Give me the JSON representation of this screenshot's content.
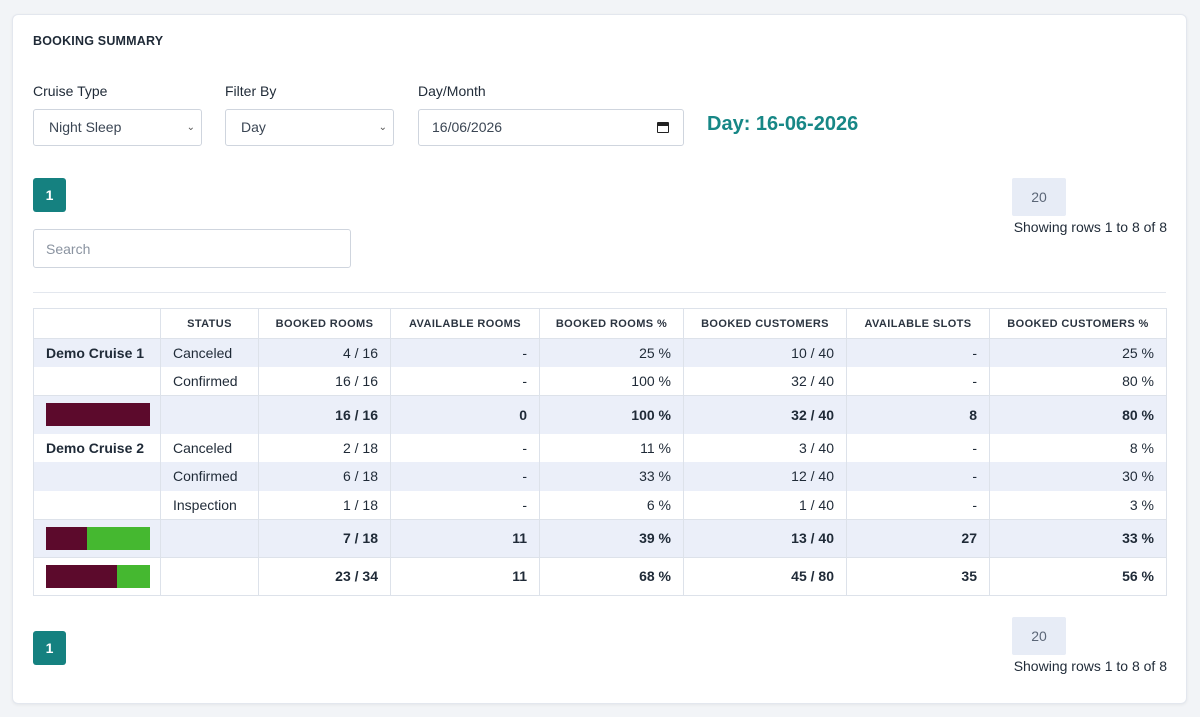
{
  "card": {
    "title": "BOOKING SUMMARY"
  },
  "filters": {
    "cruise_type": {
      "label": "Cruise Type",
      "value": "Night Sleep"
    },
    "filter_by": {
      "label": "Filter By",
      "value": "Day"
    },
    "day_month": {
      "label": "Day/Month",
      "value": "16/06/2026"
    },
    "day_label": "Day: 16-06-2026"
  },
  "pagination": {
    "current_page": "1",
    "page_size": "20",
    "showing": "Showing rows 1 to 8 of 8"
  },
  "search": {
    "placeholder": "Search",
    "icon": "none"
  },
  "colors": {
    "accent": "#158180",
    "booked": "#5c0a2c",
    "available": "#45b830",
    "alt_row": "#ebeff9"
  },
  "table": {
    "headers": [
      "",
      "STATUS",
      "BOOKED ROOMS",
      "AVAILABLE ROOMS",
      "BOOKED ROOMS %",
      "BOOKED CUSTOMERS",
      "AVAILABLE SLOTS",
      "BOOKED CUSTOMERS %"
    ],
    "rows": [
      {
        "cruise": "Demo Cruise 1",
        "status": "Canceled",
        "booked_rooms": "4 / 16",
        "available_rooms": "-",
        "booked_rooms_pct": "25 %",
        "booked_customers": "10 / 40",
        "available_slots": "-",
        "booked_customers_pct": "25 %"
      },
      {
        "cruise": "",
        "status": "Confirmed",
        "booked_rooms": "16 / 16",
        "available_rooms": "-",
        "booked_rooms_pct": "100 %",
        "booked_customers": "32 / 40",
        "available_slots": "-",
        "booked_customers_pct": "80 %"
      },
      {
        "cruise": "",
        "status": "",
        "booked_rooms": "16 / 16",
        "available_rooms": "0",
        "booked_rooms_pct": "100 %",
        "booked_customers": "32 / 40",
        "available_slots": "8",
        "booked_customers_pct": "80 %",
        "bar_booked_fraction": 1.0
      },
      {
        "cruise": "Demo Cruise 2",
        "status": "Canceled",
        "booked_rooms": "2 / 18",
        "available_rooms": "-",
        "booked_rooms_pct": "11 %",
        "booked_customers": "3 / 40",
        "available_slots": "-",
        "booked_customers_pct": "8 %"
      },
      {
        "cruise": "",
        "status": "Confirmed",
        "booked_rooms": "6 / 18",
        "available_rooms": "-",
        "booked_rooms_pct": "33 %",
        "booked_customers": "12 / 40",
        "available_slots": "-",
        "booked_customers_pct": "30 %"
      },
      {
        "cruise": "",
        "status": "Inspection",
        "booked_rooms": "1 / 18",
        "available_rooms": "-",
        "booked_rooms_pct": "6 %",
        "booked_customers": "1 / 40",
        "available_slots": "-",
        "booked_customers_pct": "3 %"
      },
      {
        "cruise": "",
        "status": "",
        "booked_rooms": "7 / 18",
        "available_rooms": "11",
        "booked_rooms_pct": "39 %",
        "booked_customers": "13 / 40",
        "available_slots": "27",
        "booked_customers_pct": "33 %",
        "bar_booked_fraction": 0.39
      },
      {
        "cruise": "",
        "status": "",
        "booked_rooms": "23 / 34",
        "available_rooms": "11",
        "booked_rooms_pct": "68 %",
        "booked_customers": "45 / 80",
        "available_slots": "35",
        "booked_customers_pct": "56 %",
        "bar_booked_fraction": 0.68
      }
    ]
  }
}
